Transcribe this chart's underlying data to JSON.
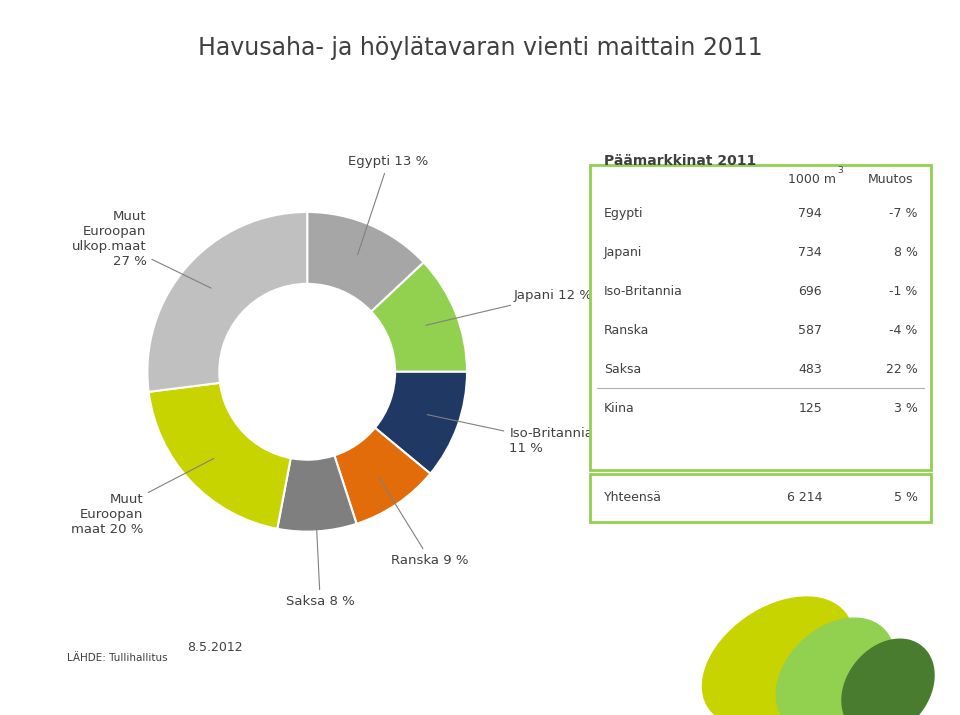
{
  "title": "Havusaha- ja höylätavaran vienti maittain 2011",
  "slices": [
    {
      "label": "Egypti 13 %",
      "value": 13,
      "color": "#a6a6a6"
    },
    {
      "label": "Japani 12 %",
      "value": 12,
      "color": "#92d050"
    },
    {
      "label": "Iso-Britannia\n11 %",
      "value": 11,
      "color": "#1f3864"
    },
    {
      "label": "Ranska 9 %",
      "value": 9,
      "color": "#e36c0a"
    },
    {
      "label": "Saksa 8 %",
      "value": 8,
      "color": "#7f7f7f"
    },
    {
      "label": "Muut\nEuroopan\nmaat 20 %",
      "value": 20,
      "color": "#c8d400"
    },
    {
      "label": "Muut\nEuroopan\nulkop.maat\n27 %",
      "value": 27,
      "color": "#c0c0c0"
    }
  ],
  "table_title": "Päämarkkinat 2011",
  "table_col2": "Muutos",
  "table_rows": [
    [
      "Egypti",
      "794",
      "-7 %"
    ],
    [
      "Japani",
      "734",
      "8 %"
    ],
    [
      "Iso-Britannia",
      "696",
      "-1 %"
    ],
    [
      "Ranska",
      "587",
      "-4 %"
    ],
    [
      "Saksa",
      "483",
      "22 %"
    ],
    [
      "Kiina",
      "125",
      "3 %"
    ]
  ],
  "table_total": [
    "Yhteensä",
    "6 214",
    "5 %"
  ],
  "source_text": "LÄHDE: Tullihallitus",
  "date_text": "8.5.2012",
  "bg_color": "#ffffff",
  "title_color": "#404040",
  "table_border_color": "#92d050",
  "footer_bar_color": "#4a7c2f"
}
